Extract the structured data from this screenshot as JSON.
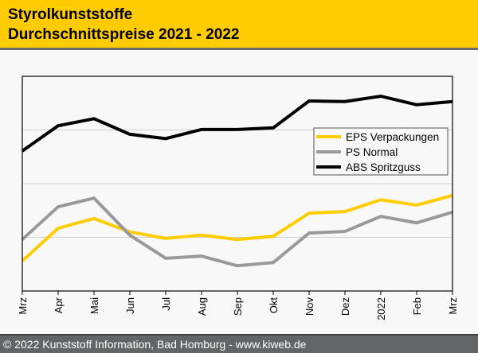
{
  "header": {
    "title_line1": "Styrolkunststoffe",
    "title_line2": "Durchschnittspreise 2021 - 2022",
    "background_color": "#ffcc00"
  },
  "footer": {
    "text": "© 2022 Kunststoff Information, Bad Homburg - www.kiweb.de"
  },
  "chart_data": {
    "type": "line",
    "title": "Styrolkunststoffe Durchschnittspreise 2021 - 2022",
    "xlabel": "",
    "ylabel": "",
    "y_axis_labels_shown": false,
    "y_units": "relative (gridline steps; no axis labels shown)",
    "ylim": [
      0,
      4
    ],
    "gridlines": [
      1,
      2,
      3
    ],
    "grid": true,
    "legend_position": "center-right",
    "categories": [
      "Mrz",
      "Apr",
      "Mai",
      "Jun",
      "Jul",
      "Aug",
      "Sep",
      "Okt",
      "Nov",
      "Dez",
      "2022",
      "Feb",
      "Mrz"
    ],
    "series": [
      {
        "name": "EPS Verpackungen",
        "color": "#ffcc00",
        "values": [
          0.56,
          1.17,
          1.35,
          1.1,
          0.98,
          1.04,
          0.96,
          1.02,
          1.45,
          1.48,
          1.7,
          1.6,
          1.78
        ]
      },
      {
        "name": "PS Normal",
        "color": "#999999",
        "values": [
          0.96,
          1.57,
          1.73,
          1.04,
          0.61,
          0.65,
          0.47,
          0.53,
          1.08,
          1.11,
          1.39,
          1.27,
          1.47
        ]
      },
      {
        "name": "ABS Spritzguss",
        "color": "#000000",
        "values": [
          2.61,
          3.08,
          3.21,
          2.92,
          2.84,
          3.01,
          3.01,
          3.04,
          3.54,
          3.53,
          3.63,
          3.47,
          3.53
        ]
      }
    ]
  }
}
